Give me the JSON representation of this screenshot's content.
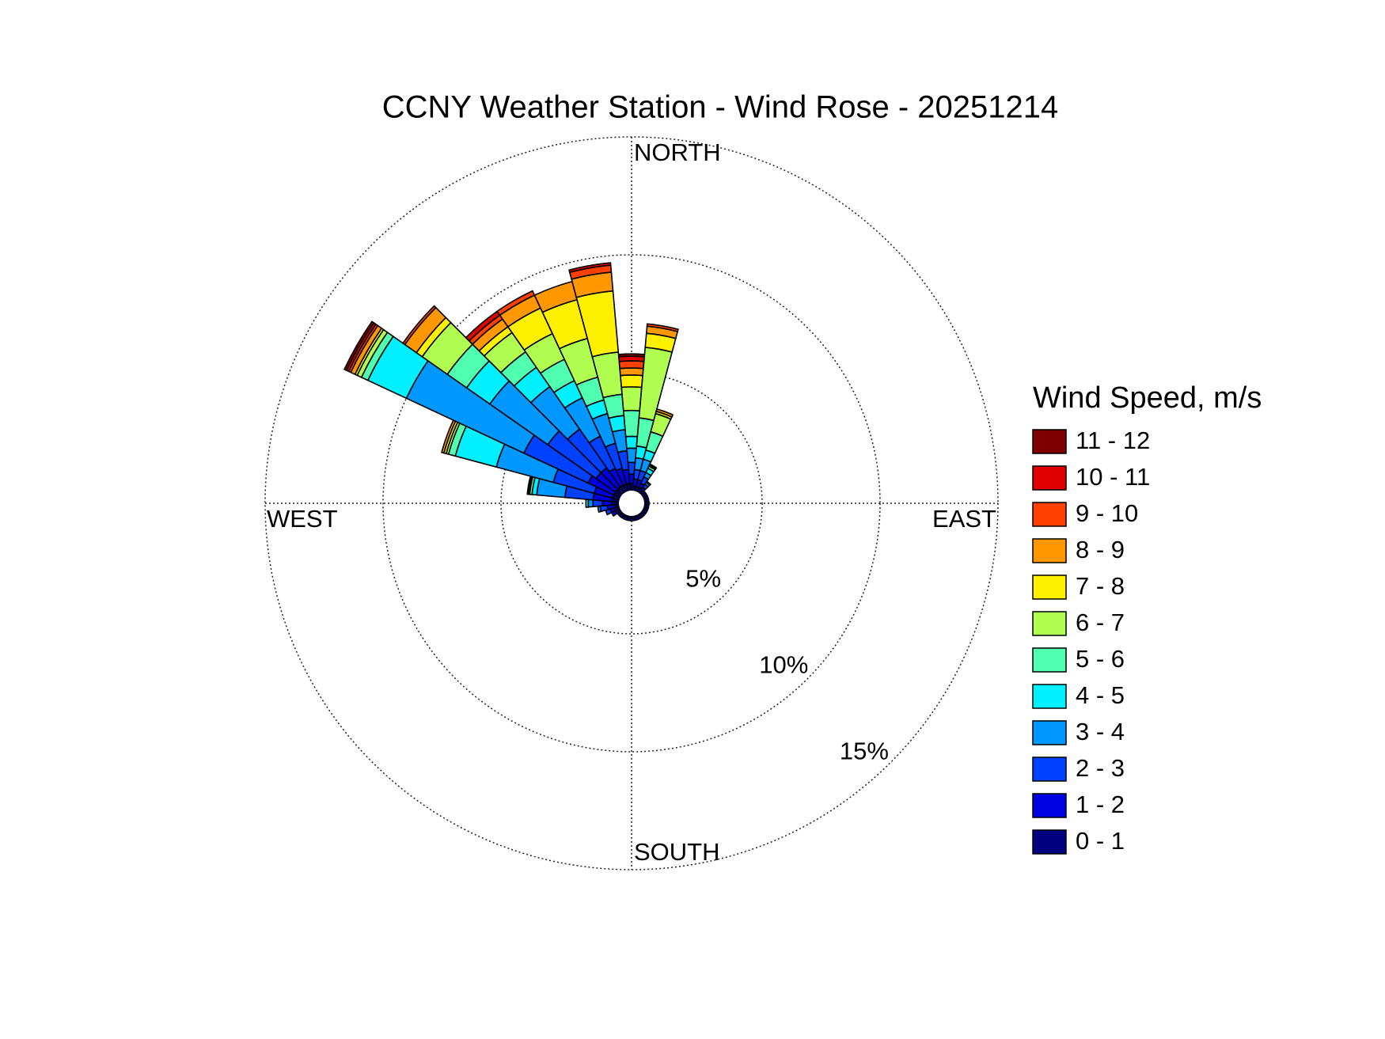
{
  "chart_data": {
    "type": "windrose",
    "title": "CCNY Weather Station - Wind Rose - 20251214",
    "legend_title": "Wind Speed, m/s",
    "direction_labels": [
      "NORTH",
      "EAST",
      "SOUTH",
      "WEST"
    ],
    "directions": [
      0,
      10,
      20,
      30,
      40,
      50,
      60,
      70,
      80,
      90,
      100,
      110,
      120,
      130,
      140,
      150,
      160,
      170,
      180,
      190,
      200,
      210,
      220,
      230,
      240,
      250,
      260,
      270,
      280,
      290,
      300,
      310,
      320,
      330,
      340,
      350
    ],
    "rlim": [
      0,
      15
    ],
    "rticks": [
      {
        "value": 5,
        "label": "5%"
      },
      {
        "value": 10,
        "label": "10%"
      },
      {
        "value": 15,
        "label": "15%"
      }
    ],
    "series": [
      {
        "name": "0 - 1",
        "color": "#000080",
        "values": [
          0.3,
          0.2,
          0.2,
          0.2,
          0.15,
          0.1,
          0.1,
          0.1,
          0.1,
          0.1,
          0.1,
          0.1,
          0.1,
          0.1,
          0.1,
          0.1,
          0.1,
          0.1,
          0.1,
          0.1,
          0.1,
          0.1,
          0.1,
          0.1,
          0.2,
          0.2,
          0.2,
          0.3,
          0.3,
          0.3,
          0.3,
          0.3,
          0.3,
          0.3,
          0.3,
          0.3
        ]
      },
      {
        "name": "1 - 2",
        "color": "#0000e0",
        "values": [
          0.4,
          0.3,
          0.3,
          0.2,
          0.15,
          0.1,
          0.1,
          0.1,
          0.1,
          0.1,
          0.1,
          0.1,
          0.1,
          0.1,
          0.1,
          0.1,
          0.1,
          0.1,
          0.1,
          0.1,
          0.1,
          0.1,
          0.1,
          0.1,
          0.2,
          0.2,
          0.3,
          0.4,
          0.8,
          0.8,
          1.2,
          1.0,
          1.0,
          0.8,
          0.7,
          0.6
        ]
      },
      {
        "name": "2 - 3",
        "color": "#0040ff",
        "values": [
          0.5,
          0.4,
          0.4,
          0.3,
          0.15,
          0,
          0,
          0,
          0,
          0,
          0,
          0,
          0,
          0,
          0,
          0,
          0,
          0,
          0,
          0,
          0,
          0,
          0,
          0,
          0,
          0.2,
          0.3,
          0.4,
          1.2,
          1.8,
          3.0,
          2.5,
          2.0,
          1.5,
          1.1,
          0.8
        ]
      },
      {
        "name": "3 - 4",
        "color": "#0098ff",
        "values": [
          0.6,
          0.5,
          0.5,
          0.2,
          0.1,
          0,
          0,
          0,
          0,
          0,
          0,
          0,
          0,
          0,
          0,
          0,
          0,
          0,
          0,
          0,
          0,
          0,
          0,
          0,
          0,
          0,
          0.1,
          0.2,
          1.2,
          2.5,
          5.5,
          3.0,
          2.2,
          1.8,
          1.3,
          0.9
        ]
      },
      {
        "name": "4 - 5",
        "color": "#00f0ff",
        "values": [
          0.5,
          0.5,
          0.4,
          0.2,
          0.05,
          0,
          0,
          0,
          0,
          0,
          0,
          0,
          0,
          0,
          0,
          0,
          0,
          0,
          0,
          0,
          0,
          0,
          0,
          0,
          0,
          0,
          0,
          0.1,
          0.2,
          1.8,
          1.8,
          1.2,
          1.0,
          0.8,
          0.6,
          0.6
        ]
      },
      {
        "name": "5 - 6",
        "color": "#50ffb0",
        "values": [
          1.1,
          1.2,
          0.8,
          0.1,
          0,
          0,
          0,
          0,
          0,
          0,
          0,
          0,
          0,
          0,
          0,
          0,
          0,
          0,
          0,
          0,
          0,
          0,
          0,
          0,
          0,
          0,
          0,
          0,
          0.1,
          0.3,
          0.3,
          1.0,
          0.8,
          1.0,
          1.0,
          0.9
        ]
      },
      {
        "name": "6 - 7",
        "color": "#b0ff50",
        "values": [
          1.0,
          3.0,
          0.8,
          0.05,
          0,
          0,
          0,
          0,
          0,
          0,
          0,
          0,
          0,
          0,
          0,
          0,
          0,
          0,
          0,
          0,
          0,
          0,
          0,
          0,
          0,
          0,
          0,
          0,
          0.05,
          0.1,
          0.2,
          1.3,
          1.0,
          1.2,
          1.7,
          1.8
        ]
      },
      {
        "name": "7 - 8",
        "color": "#fff000",
        "values": [
          0.5,
          0.6,
          0.1,
          0.05,
          0,
          0,
          0,
          0,
          0,
          0,
          0,
          0,
          0,
          0,
          0,
          0,
          0,
          0,
          0,
          0,
          0,
          0,
          0,
          0,
          0,
          0,
          0,
          0,
          0.05,
          0.1,
          0.1,
          0.3,
          0.3,
          1.2,
          1.7,
          2.6
        ]
      },
      {
        "name": "8 - 9",
        "color": "#ff9800",
        "values": [
          0.3,
          0.3,
          0.1,
          0,
          0,
          0,
          0,
          0,
          0,
          0,
          0,
          0,
          0,
          0,
          0,
          0,
          0,
          0,
          0,
          0,
          0,
          0,
          0,
          0,
          0,
          0,
          0,
          0,
          0,
          0.1,
          0.2,
          0.6,
          0.4,
          0.6,
          0.8,
          0.8
        ]
      },
      {
        "name": "9 - 10",
        "color": "#ff4000",
        "values": [
          0.3,
          0.1,
          0,
          0,
          0,
          0,
          0,
          0,
          0,
          0,
          0,
          0,
          0,
          0,
          0,
          0,
          0,
          0,
          0,
          0,
          0,
          0,
          0,
          0,
          0,
          0,
          0,
          0,
          0,
          0,
          0.1,
          0.1,
          0.2,
          0.2,
          0,
          0.3
        ]
      },
      {
        "name": "10 - 11",
        "color": "#e00000",
        "values": [
          0.2,
          0,
          0,
          0,
          0,
          0,
          0,
          0,
          0,
          0,
          0,
          0,
          0,
          0,
          0,
          0,
          0,
          0,
          0,
          0,
          0,
          0,
          0,
          0,
          0,
          0,
          0,
          0,
          0,
          0,
          0.1,
          0,
          0.2,
          0,
          0,
          0.1
        ]
      },
      {
        "name": "11 - 12",
        "color": "#800000",
        "values": [
          0.1,
          0,
          0,
          0,
          0,
          0,
          0,
          0,
          0,
          0,
          0,
          0,
          0,
          0,
          0,
          0,
          0,
          0,
          0,
          0,
          0,
          0,
          0,
          0,
          0,
          0,
          0,
          0,
          0,
          0,
          0.1,
          0,
          0,
          0,
          0,
          0
        ]
      }
    ]
  }
}
